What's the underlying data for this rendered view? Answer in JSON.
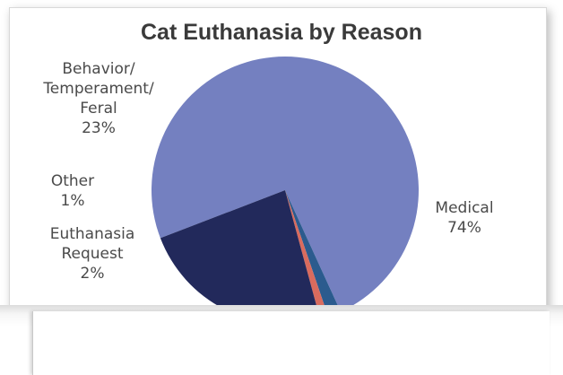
{
  "chart_data": {
    "type": "pie",
    "title": "Cat Euthanasia by Reason",
    "slices": [
      {
        "label": [
          "Medical"
        ],
        "percent_label": "74%",
        "value": 74,
        "color": "#7480C0"
      },
      {
        "label": [
          "Euthanasia",
          "Request"
        ],
        "percent_label": "2%",
        "value": 1.6,
        "color": "#2B5B8E"
      },
      {
        "label": [
          "Other"
        ],
        "percent_label": "1%",
        "value": 1.0,
        "color": "#D96B5E"
      },
      {
        "label": [
          "Behavior/",
          "Temperament/",
          "Feral"
        ],
        "percent_label": "23%",
        "value": 23.4,
        "color": "#22295B"
      }
    ],
    "legend": "none",
    "data_labels": "outside"
  }
}
